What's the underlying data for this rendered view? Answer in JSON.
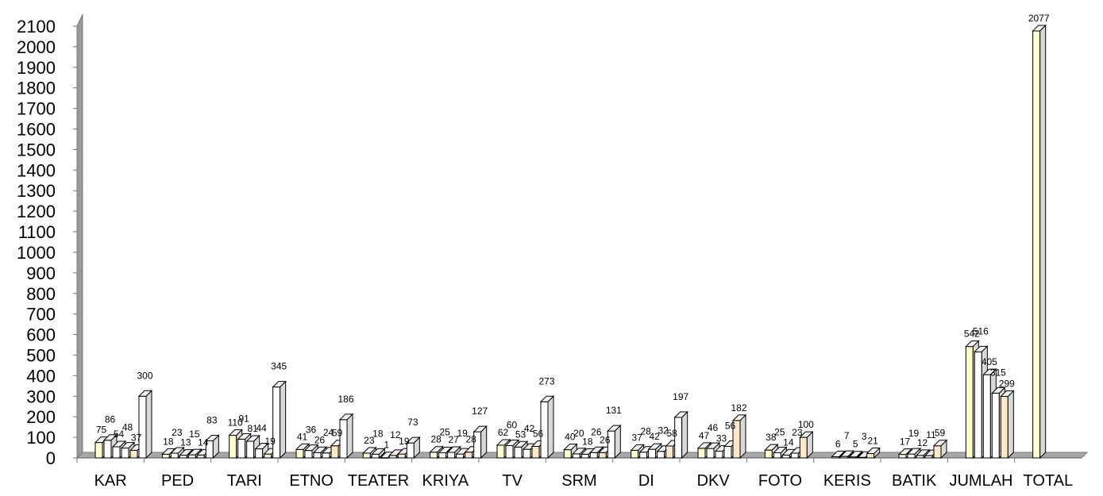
{
  "chart_data": {
    "type": "bar",
    "subtype": "3d-clustered",
    "title": "",
    "xlabel": "",
    "ylabel": "",
    "ylim": [
      0,
      2100
    ],
    "ytick_step": 100,
    "grid": false,
    "legend": "none",
    "categories": [
      "KAR",
      "PED",
      "TARI",
      "ETNO",
      "TEATER",
      "KRIYA",
      "TV",
      "SRM",
      "DI",
      "DKV",
      "FOTO",
      "KERIS",
      "BATIK",
      "JUMLAH",
      "TOTAL"
    ],
    "series_colors": [
      "#FFFFCC",
      "#FFFFFF",
      "#FFFFFF",
      "#FFFFFF",
      "#FFE8C8",
      "#FFFFFF"
    ],
    "bars": [
      [
        {
          "v": 75
        },
        {
          "v": 86
        },
        {
          "v": 54
        },
        {
          "v": 48
        },
        {
          "v": 37
        },
        {
          "v": 300
        }
      ],
      [
        {
          "v": 18
        },
        {
          "v": 23
        },
        {
          "v": 13
        },
        {
          "v": 15
        },
        {
          "v": 14
        },
        {
          "v": 83
        }
      ],
      [
        {
          "v": 110
        },
        {
          "v": 91
        },
        {
          "v": 81
        },
        {
          "v": 44
        },
        {
          "v": 19
        },
        {
          "v": 345
        }
      ],
      [
        {
          "v": 41
        },
        {
          "v": 36
        },
        {
          "v": 26
        },
        {
          "v": 24
        },
        {
          "v": 59
        },
        {
          "v": 186
        }
      ],
      [
        {
          "v": 23
        },
        {
          "v": 18
        },
        {
          "v": 1
        },
        {
          "v": 12
        },
        {
          "v": 19
        },
        {
          "v": 73
        }
      ],
      [
        {
          "v": 28
        },
        {
          "v": 25
        },
        {
          "v": 27
        },
        {
          "v": 19
        },
        {
          "v": 28
        },
        {
          "v": 127
        }
      ],
      [
        {
          "v": 62
        },
        {
          "v": 60
        },
        {
          "v": 53
        },
        {
          "v": 42
        },
        {
          "v": 56
        },
        {
          "v": 273
        }
      ],
      [
        {
          "v": 40
        },
        {
          "v": 20
        },
        {
          "v": 18
        },
        {
          "v": 26
        },
        {
          "v": 26
        },
        {
          "v": 131
        }
      ],
      [
        {
          "v": 37
        },
        {
          "v": 28
        },
        {
          "v": 42
        },
        {
          "v": 32
        },
        {
          "v": 58
        },
        {
          "v": 197
        }
      ],
      [
        {
          "v": 47
        },
        {
          "v": 46
        },
        {
          "v": 33
        },
        {
          "v": 56
        },
        {
          "v": 182
        }
      ],
      [
        {
          "v": 38
        },
        {
          "v": 25
        },
        {
          "v": 14
        },
        {
          "v": 23
        },
        {
          "v": 100
        }
      ],
      [
        {
          "v": 6
        },
        {
          "v": 7
        },
        {
          "v": 5
        },
        {
          "v": 3
        },
        {
          "v": 21
        }
      ],
      [
        {
          "v": 17
        },
        {
          "v": 19
        },
        {
          "v": 12
        },
        {
          "v": 11
        },
        {
          "v": 59
        }
      ],
      [
        {
          "v": 542
        },
        {
          "v": 516
        },
        {
          "v": 405
        },
        {
          "v": 315
        },
        {
          "v": 299
        }
      ],
      [
        {
          "v": 2077
        }
      ]
    ]
  }
}
